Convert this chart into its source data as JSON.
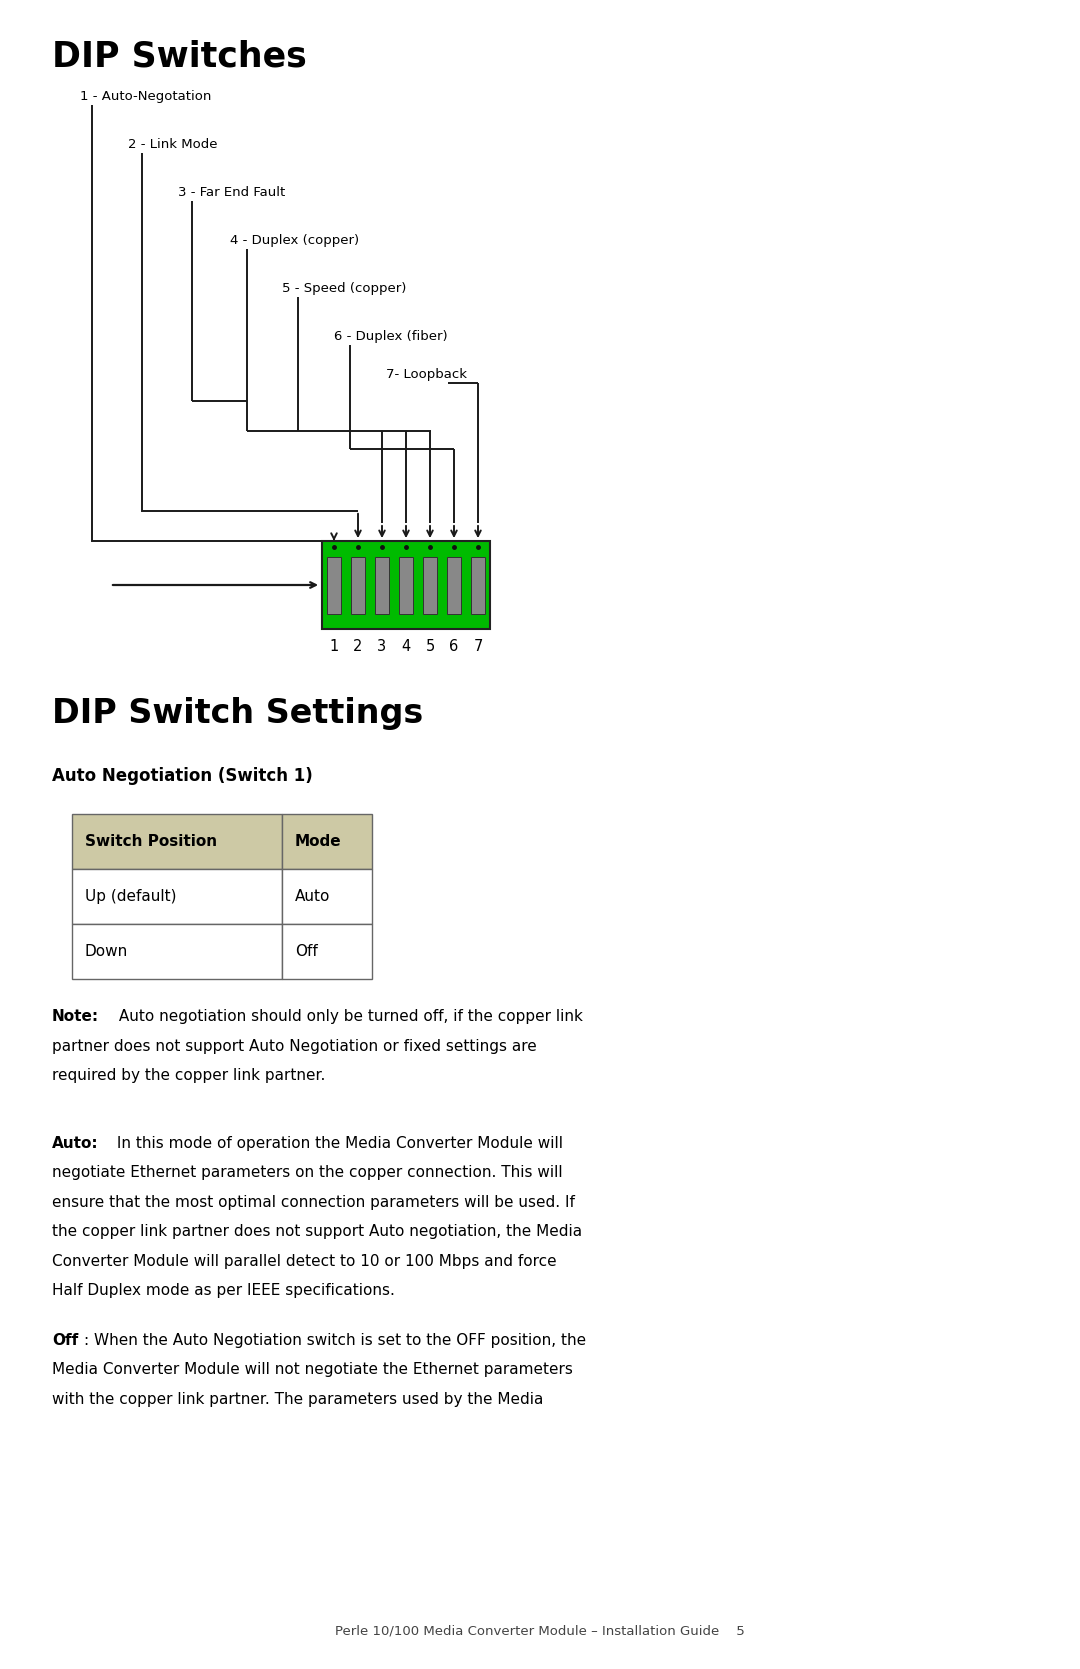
{
  "bg_color": "#ffffff",
  "title_dip_switches": "DIP Switches",
  "title_dip_settings": "DIP Switch Settings",
  "subtitle_auto_neg": "Auto Negotiation (Switch 1)",
  "labels": [
    "1 - Auto-Negotation",
    "2 - Link Mode",
    "3 - Far End Fault",
    "4 - Duplex (copper)",
    "5 - Speed (copper)",
    "6 - Duplex (fiber)",
    "7- Loopback"
  ],
  "switch_numbers": [
    "1",
    "2",
    "3",
    "4",
    "5",
    "6",
    "7"
  ],
  "table_headers": [
    "Switch Position",
    "Mode"
  ],
  "table_rows": [
    [
      "Up (default)",
      "Auto"
    ],
    [
      "Down",
      "Off"
    ]
  ],
  "table_header_bg": "#cdc9a5",
  "table_border_color": "#666666",
  "dip_green": "#00bb00",
  "dip_gray": "#999999",
  "line_color": "#1a1a1a",
  "footer_text": "Perle 10/100 Media Converter Module – Installation Guide    5"
}
